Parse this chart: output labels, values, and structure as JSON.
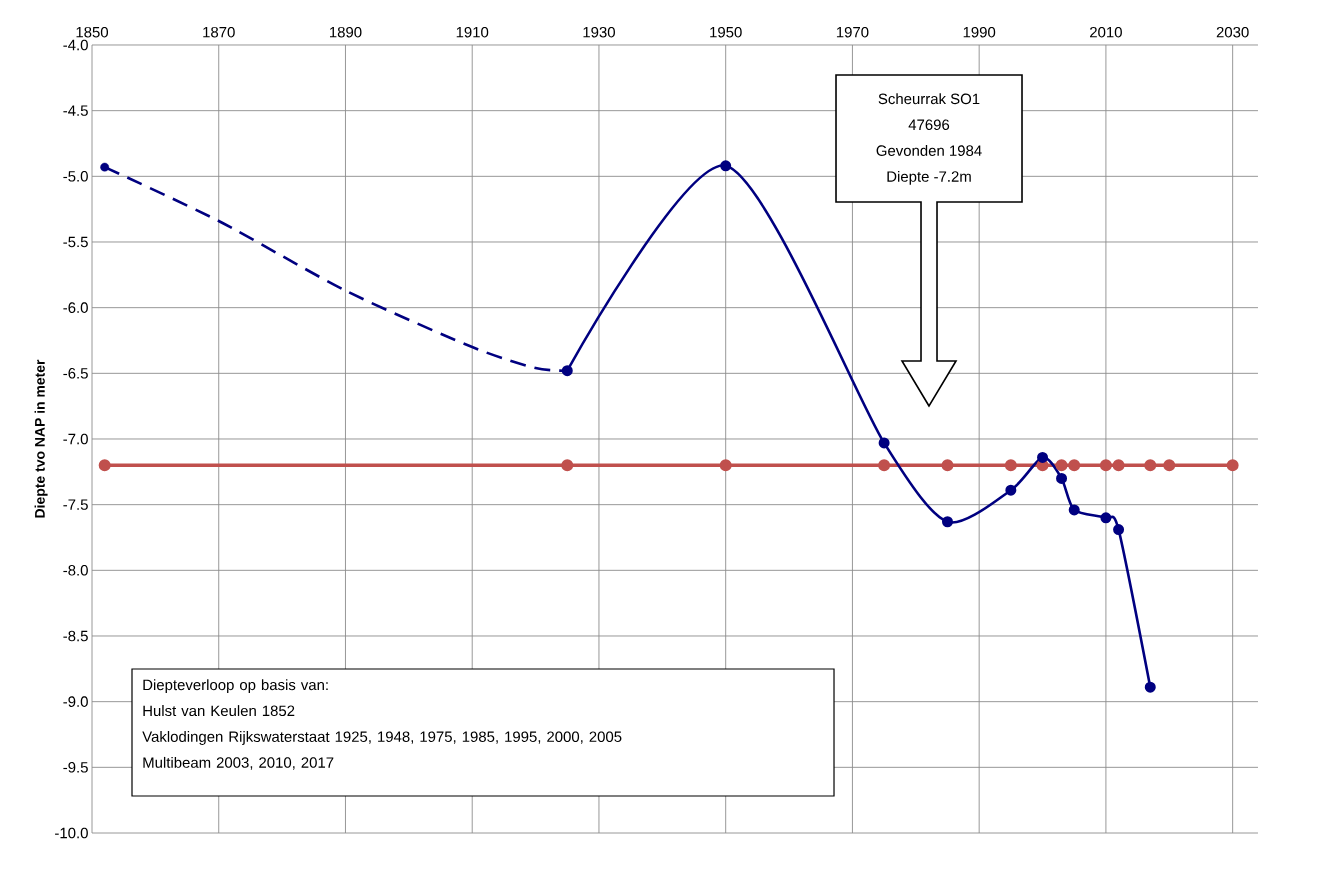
{
  "chart_data": {
    "type": "line",
    "ylabel": "Diepte tvo NAP in meter",
    "xlim": [
      1850,
      2034
    ],
    "ylim": [
      -10,
      -4
    ],
    "xticks": [
      1850,
      1870,
      1890,
      1910,
      1930,
      1950,
      1970,
      1990,
      2010,
      2030
    ],
    "yticks": [
      {
        "value": -4,
        "label": "-4.0"
      },
      {
        "value": -4.5,
        "label": "-4.5"
      },
      {
        "value": -5,
        "label": "-5.0"
      },
      {
        "value": -5.5,
        "label": "-5.5"
      },
      {
        "value": -6,
        "label": "-6.0"
      },
      {
        "value": -6.5,
        "label": "-6.5"
      },
      {
        "value": -7,
        "label": "-7.0"
      },
      {
        "value": -7.5,
        "label": "-7.5"
      },
      {
        "value": -8,
        "label": "-8.0"
      },
      {
        "value": -8.5,
        "label": "-8.5"
      },
      {
        "value": -9,
        "label": "-9.0"
      },
      {
        "value": -9.5,
        "label": "-9.5"
      },
      {
        "value": -10,
        "label": "-10.0"
      }
    ],
    "grid": true,
    "series": [
      {
        "color": "#c0504d",
        "marker": "circle",
        "line_style": "solid",
        "x": [
          1852,
          1925,
          1950,
          1975,
          1985,
          1995,
          2000,
          2003,
          2005,
          2010,
          2012,
          2017,
          2020,
          2030
        ],
        "values": [
          -7.2,
          -7.2,
          -7.2,
          -7.2,
          -7.2,
          -7.2,
          -7.2,
          -7.2,
          -7.2,
          -7.2,
          -7.2,
          -7.2,
          -7.2,
          -7.2
        ]
      },
      {
        "color": "#000080",
        "marker": "none",
        "line_style": "dashed",
        "x": [
          1852,
          1870,
          1890,
          1910,
          1920,
          1925
        ],
        "values": [
          -4.93,
          -5.34,
          -5.87,
          -6.3,
          -6.46,
          -6.48
        ]
      },
      {
        "type": "scatter",
        "color": "#000080",
        "marker": "circle",
        "x": [
          1852
        ],
        "values": [
          -4.93
        ]
      },
      {
        "color": "#000080",
        "marker": "circle",
        "line_style": "solid",
        "x": [
          1925,
          1950,
          1975,
          1985,
          1995,
          2000,
          2003,
          2005,
          2010,
          2012,
          2017
        ],
        "values": [
          -6.48,
          -4.92,
          -7.03,
          -7.63,
          -7.39,
          -7.14,
          -7.3,
          -7.54,
          -7.6,
          -7.69,
          -8.89
        ]
      }
    ],
    "annotations": [
      "Scheurrak SO1",
      "47696",
      "Gevonden 1984",
      "Diepte -7.2m",
      "Diepteverloop  op basis van:",
      "Hulst van Keulen 1852",
      "Vaklodingen Rijkswaterstaat 1925, 1948, 1975, 1985, 1995, 2000, 2005",
      "Multibeam 2003, 2010, 2017"
    ]
  }
}
